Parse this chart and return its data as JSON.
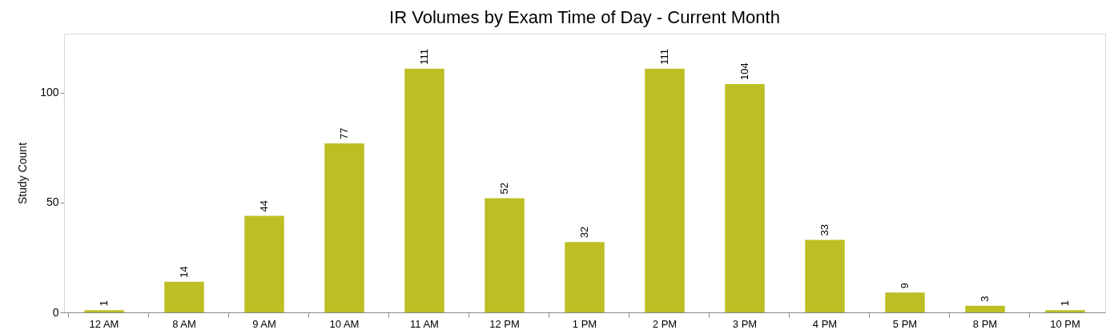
{
  "chart_data": {
    "type": "bar",
    "title": "IR Volumes by Exam Time of Day - Current Month",
    "ylabel": "Study Count",
    "categories": [
      "12 AM",
      "8 AM",
      "9 AM",
      "10 AM",
      "11 AM",
      "12 PM",
      "1 PM",
      "2 PM",
      "3 PM",
      "4 PM",
      "5 PM",
      "8 PM",
      "10 PM"
    ],
    "values": [
      1,
      14,
      44,
      77,
      111,
      52,
      32,
      111,
      104,
      33,
      9,
      3,
      1
    ],
    "color": "#bdbe24",
    "ylim": [
      0,
      127
    ],
    "yticks": [
      0,
      50,
      100
    ],
    "grid": false,
    "data_labels": true
  }
}
